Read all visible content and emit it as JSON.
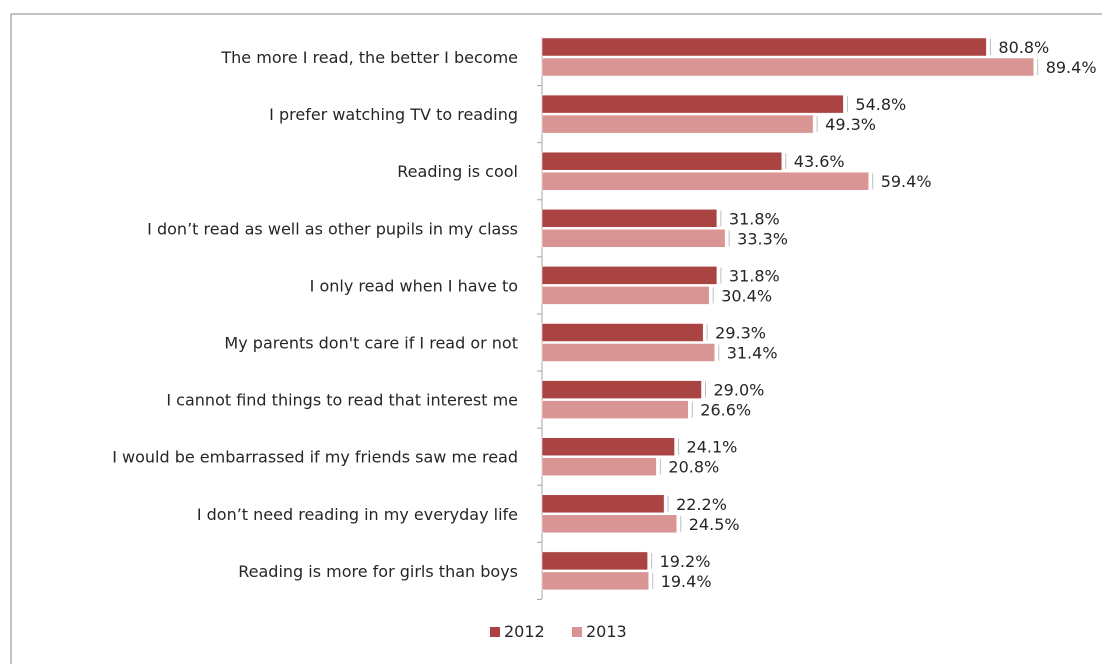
{
  "chart_data": {
    "type": "bar",
    "orientation": "horizontal",
    "title": "",
    "xlabel": "",
    "ylabel": "",
    "xlim": [
      0,
      100
    ],
    "grid": false,
    "legend_position": "bottom",
    "value_format": "%",
    "categories": [
      "The more I read, the better I become",
      "I prefer watching TV to reading",
      "Reading is cool",
      "I don’t read as well as other pupils in my class",
      "I only read when I have to",
      "My parents don't care if I read or not",
      "I cannot find things to read that interest me",
      "I would be embarrassed if my friends saw me read",
      "I don’t need reading in my everyday life",
      "Reading is more for girls than boys"
    ],
    "series": [
      {
        "name": "2012",
        "color": "#A94442",
        "values": [
          80.8,
          54.8,
          43.6,
          31.8,
          31.8,
          29.3,
          29.0,
          24.1,
          22.2,
          19.2
        ],
        "labels": [
          "80.8%",
          "54.8%",
          "43.6%",
          "31.8%",
          "31.8%",
          "29.3%",
          "29.0%",
          "24.1%",
          "22.2%",
          "19.2%"
        ]
      },
      {
        "name": "2013",
        "color": "#D99594",
        "values": [
          89.4,
          49.3,
          59.4,
          33.3,
          30.4,
          31.4,
          26.6,
          20.8,
          24.5,
          19.4
        ],
        "labels": [
          "89.4%",
          "49.3%",
          "59.4%",
          "33.3%",
          "30.4%",
          "31.4%",
          "26.6%",
          "20.8%",
          "24.5%",
          "19.4%"
        ]
      }
    ]
  }
}
